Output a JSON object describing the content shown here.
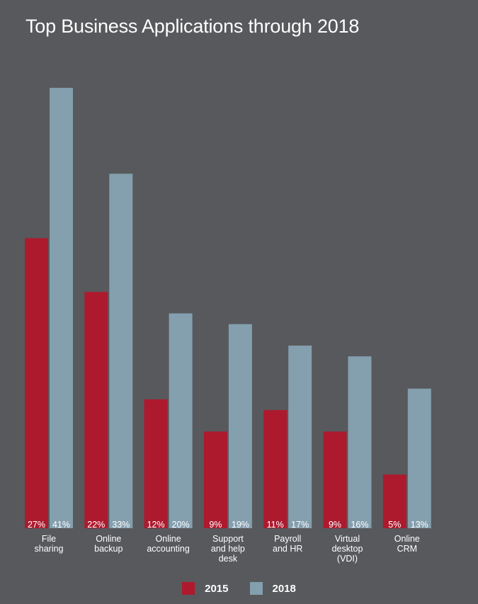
{
  "chart_data": {
    "type": "bar",
    "title": "Top Business Applications through 2018",
    "xlabel": "",
    "ylabel": "",
    "ylim": [
      0,
      41
    ],
    "categories": [
      [
        "File",
        "sharing"
      ],
      [
        "Online",
        "backup"
      ],
      [
        "Online",
        "accounting"
      ],
      [
        "Support",
        "and help",
        "desk"
      ],
      [
        "Payroll",
        "and HR"
      ],
      [
        "Virtual",
        "desktop",
        "(VDI)"
      ],
      [
        "Online",
        "CRM"
      ]
    ],
    "series": [
      {
        "name": "2015",
        "color": "#ad1a2e",
        "values": [
          27,
          22,
          12,
          9,
          11,
          9,
          5
        ],
        "labels": [
          "27%",
          "22%",
          "12%",
          "9%",
          "11%",
          "9%",
          "5%"
        ]
      },
      {
        "name": "2018",
        "color": "#849fae",
        "values": [
          41,
          33,
          20,
          19,
          17,
          16,
          13
        ],
        "labels": [
          "41%",
          "33%",
          "20%",
          "19%",
          "17%",
          "16%",
          "13%"
        ]
      }
    ],
    "legend_position": "bottom-center",
    "grid": false
  }
}
